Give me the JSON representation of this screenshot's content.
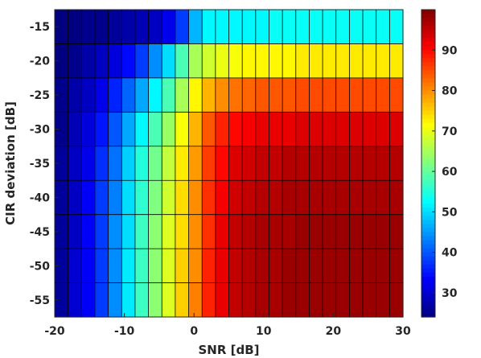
{
  "chart_data": {
    "type": "heatmap",
    "xlabel": "SNR [dB]",
    "ylabel": "CIR deviation [dB]",
    "x": [
      -20,
      -18,
      -16,
      -14,
      -12,
      -10,
      -8,
      -6,
      -4,
      -2,
      0,
      2,
      4,
      6,
      8,
      10,
      12,
      14,
      16,
      18,
      20,
      22,
      24,
      26,
      28,
      30
    ],
    "y": [
      -15,
      -20,
      -25,
      -30,
      -35,
      -40,
      -45,
      -50,
      -55
    ],
    "xlim": [
      -20,
      30
    ],
    "ylim": [
      -57.5,
      -12.5
    ],
    "x_ticks": [
      -20,
      -10,
      0,
      10,
      20,
      30
    ],
    "y_ticks": [
      -15,
      -20,
      -25,
      -30,
      -35,
      -40,
      -45,
      -50,
      -55
    ],
    "colorbar": {
      "min": 24,
      "max": 100,
      "ticks": [
        30,
        40,
        50,
        60,
        70,
        80,
        90
      ]
    },
    "colormap": "jet",
    "grid_color": "#000000",
    "values": [
      [
        24,
        24,
        25,
        25,
        26,
        27,
        28,
        29,
        32,
        38,
        47,
        52,
        52,
        52,
        52,
        52,
        53,
        53,
        53,
        53,
        53,
        53,
        53,
        53,
        53,
        53
      ],
      [
        24,
        25,
        27,
        29,
        31,
        34,
        38,
        44,
        50,
        58,
        65,
        68,
        70,
        71,
        72,
        72,
        72,
        72,
        73,
        73,
        73,
        73,
        73,
        73,
        73,
        73
      ],
      [
        25,
        27,
        29,
        32,
        36,
        41,
        46,
        52,
        58,
        65,
        72,
        77,
        80,
        82,
        83,
        84,
        84,
        84,
        85,
        85,
        85,
        85,
        85,
        85,
        85,
        85
      ],
      [
        25,
        28,
        31,
        35,
        40,
        46,
        52,
        58,
        64,
        71,
        77,
        84,
        88,
        90,
        91,
        92,
        92,
        92,
        93,
        93,
        93,
        93,
        93,
        93,
        93,
        93
      ],
      [
        26,
        29,
        32,
        37,
        42,
        49,
        55,
        61,
        67,
        73,
        79,
        86,
        90,
        93,
        94,
        95,
        95,
        96,
        96,
        96,
        96,
        96,
        96,
        96,
        96,
        96
      ],
      [
        26,
        29,
        33,
        38,
        43,
        50,
        56,
        62,
        68,
        74,
        80,
        87,
        91,
        94,
        95,
        96,
        96,
        97,
        97,
        97,
        97,
        97,
        97,
        97,
        97,
        97
      ],
      [
        26,
        29,
        33,
        38,
        44,
        50,
        57,
        63,
        69,
        74,
        80,
        87,
        92,
        95,
        96,
        97,
        97,
        97,
        98,
        98,
        98,
        98,
        98,
        98,
        98,
        98
      ],
      [
        26,
        30,
        33,
        38,
        44,
        51,
        57,
        63,
        69,
        75,
        80,
        88,
        92,
        95,
        96,
        97,
        97,
        98,
        98,
        98,
        98,
        98,
        98,
        98,
        98,
        98
      ],
      [
        26,
        30,
        33,
        38,
        44,
        51,
        57,
        63,
        69,
        75,
        81,
        88,
        92,
        95,
        96,
        97,
        97,
        98,
        98,
        98,
        98,
        98,
        98,
        98,
        98,
        98
      ]
    ]
  }
}
